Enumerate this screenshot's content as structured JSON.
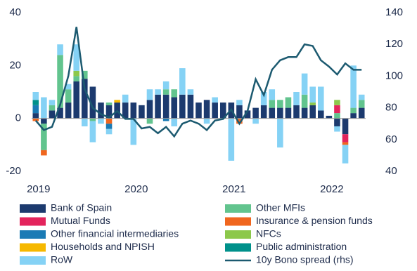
{
  "chart_data": {
    "type": "bar",
    "categories": [
      "2019",
      null,
      null,
      null,
      null,
      null,
      null,
      null,
      null,
      null,
      null,
      null,
      "2020",
      null,
      null,
      null,
      null,
      null,
      null,
      null,
      null,
      null,
      null,
      null,
      "2021",
      null,
      null,
      null,
      null,
      null,
      null,
      null,
      null,
      null,
      null,
      null,
      "2022",
      null,
      null,
      null,
      null
    ],
    "series": [
      {
        "name": "Bank of Spain",
        "color": "#1c3a6e",
        "values": [
          2,
          -2,
          3,
          4,
          6,
          14,
          15,
          12,
          6,
          5,
          6,
          6,
          6,
          5,
          7,
          9,
          9,
          8,
          9,
          9,
          6,
          7,
          6,
          6,
          6,
          5,
          3,
          4,
          5,
          4,
          4,
          4,
          5,
          4,
          5,
          3,
          1,
          -3,
          -6,
          2,
          4
        ]
      },
      {
        "name": "Other MFIs",
        "color": "#62c48e",
        "values": [
          0,
          -10,
          2,
          20,
          5,
          2,
          3,
          -1,
          0,
          1,
          0,
          0,
          0,
          0,
          -2,
          0,
          2,
          3,
          0,
          0,
          0,
          0,
          0,
          0,
          0,
          0,
          0,
          0,
          0,
          3,
          3,
          4,
          0,
          5,
          0,
          0,
          0,
          2,
          0,
          2,
          3
        ]
      },
      {
        "name": "Mutual Funds",
        "color": "#e3245c",
        "values": [
          0,
          0,
          0,
          0,
          0,
          0,
          0,
          0,
          0,
          0,
          0,
          0,
          0,
          0,
          0,
          0,
          0,
          0,
          0,
          0,
          0,
          0,
          0,
          0,
          0,
          0,
          0,
          0,
          0,
          0,
          0,
          0,
          0,
          0,
          0,
          0,
          0,
          3,
          -3,
          0,
          0
        ]
      },
      {
        "name": "Insurance & pension funds",
        "color": "#f0661e",
        "values": [
          -1,
          -2,
          0,
          0,
          0,
          0,
          0,
          0,
          0,
          -2,
          0,
          0,
          0,
          0,
          0,
          0,
          0,
          0,
          0,
          0,
          0,
          0,
          0,
          0,
          0,
          -2,
          0,
          0,
          0,
          0,
          0,
          0,
          0,
          0,
          0,
          0,
          0,
          0,
          -1,
          0,
          0
        ]
      },
      {
        "name": "Other financial intermediaries",
        "color": "#1a7bb5",
        "values": [
          3,
          0,
          0,
          0,
          0,
          0,
          0,
          0,
          0,
          -2,
          0,
          0,
          0,
          0,
          0,
          0,
          -1,
          0,
          0,
          0,
          0,
          0,
          0,
          0,
          0,
          0,
          0,
          0,
          0,
          0,
          0,
          0,
          0,
          0,
          0,
          0,
          0,
          0,
          0,
          0,
          0
        ]
      },
      {
        "name": "NFCs",
        "color": "#8cc84b",
        "values": [
          0,
          0,
          0,
          0,
          0,
          2,
          0,
          0,
          0,
          0,
          0,
          0,
          0,
          0,
          0,
          0,
          0,
          0,
          0,
          0,
          0,
          0,
          0,
          0,
          0,
          0,
          0,
          0,
          0,
          0,
          0,
          0,
          0,
          0,
          1,
          0,
          0,
          2,
          0,
          0,
          0
        ]
      },
      {
        "name": "Households and NPISH",
        "color": "#f6b800",
        "values": [
          0,
          0,
          0,
          0,
          0,
          0,
          0,
          0,
          0,
          0,
          1,
          0,
          0,
          0,
          0,
          0,
          0,
          0,
          0,
          0,
          0,
          0,
          0,
          0,
          0,
          0,
          0,
          0,
          0,
          0,
          0,
          0,
          0,
          0,
          0,
          0,
          0,
          0,
          0,
          0,
          0
        ]
      },
      {
        "name": "Public administration",
        "color": "#00918b",
        "values": [
          2,
          0,
          0,
          0,
          0,
          0,
          0,
          0,
          0,
          0,
          0,
          0,
          0,
          0,
          0,
          0,
          0,
          0,
          0,
          0,
          0,
          0,
          0,
          0,
          0,
          0,
          0,
          0,
          0,
          0,
          0,
          0,
          0,
          0,
          0,
          0,
          0,
          0,
          0,
          0,
          0
        ]
      },
      {
        "name": "RoW",
        "color": "#85d2f5",
        "values": [
          3,
          8,
          2,
          4,
          2,
          10,
          -3,
          -8,
          -2,
          -2,
          0,
          3,
          -10,
          0,
          4,
          2,
          3,
          -3,
          10,
          2,
          0,
          -2,
          2,
          0,
          -16,
          2,
          0,
          -2,
          5,
          4,
          -11,
          0,
          5,
          8,
          6,
          9,
          0,
          -2,
          -7,
          16,
          2
        ]
      },
      {
        "name": "10y Bono spread (rhs)",
        "color": "#1c5a70",
        "type": "line",
        "axis": "y2",
        "values": [
          72,
          66,
          68,
          82,
          100,
          131,
          92,
          80,
          76,
          74,
          78,
          73,
          73,
          67,
          68,
          64,
          68,
          62,
          70,
          72,
          70,
          66,
          72,
          73,
          79,
          70,
          78,
          98,
          88,
          104,
          110,
          112,
          112,
          120,
          119,
          110,
          106,
          101,
          108,
          104,
          104
        ]
      }
    ],
    "ylim": [
      -20,
      40
    ],
    "yticks": [
      -20,
      0,
      20,
      40
    ],
    "y2lim": [
      40,
      140
    ],
    "y2ticks": [
      40,
      60,
      80,
      100,
      120,
      140
    ]
  }
}
